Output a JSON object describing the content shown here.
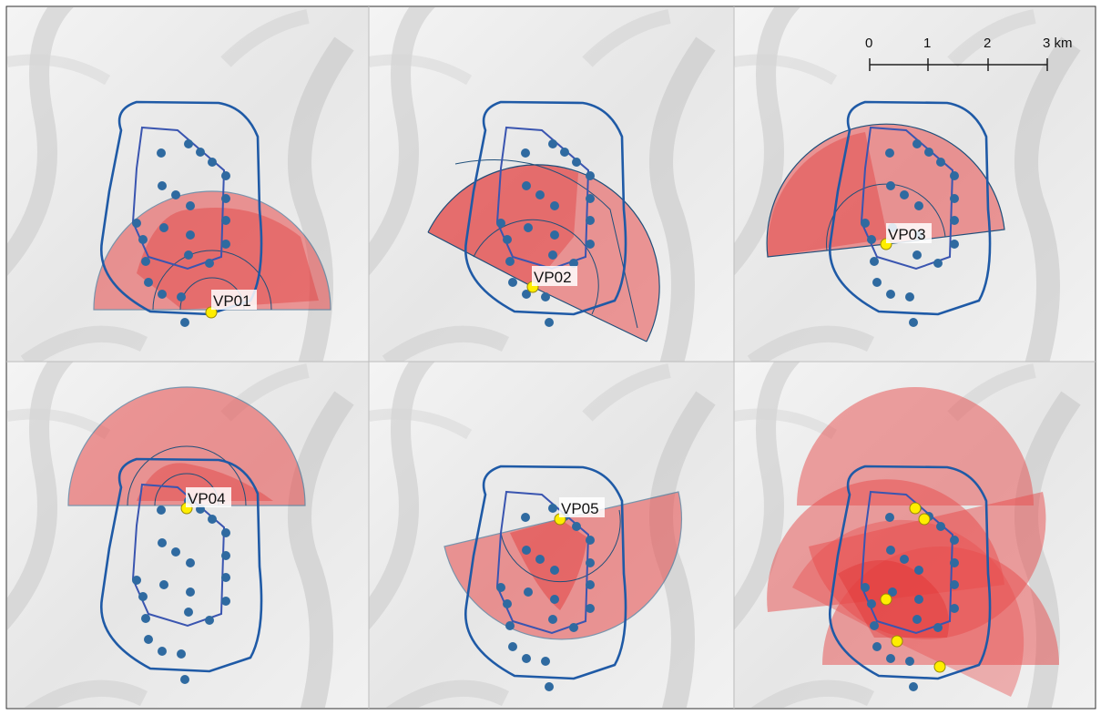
{
  "figure": {
    "panels": [
      {
        "id": "vp01",
        "label": "VP01"
      },
      {
        "id": "vp02",
        "label": "VP02"
      },
      {
        "id": "vp03",
        "label": "VP03"
      },
      {
        "id": "vp04",
        "label": "VP04"
      },
      {
        "id": "vp05",
        "label": "VP05"
      },
      {
        "id": "combined",
        "label": ""
      }
    ],
    "scale_bar": {
      "ticks": [
        "0",
        "1",
        "2",
        "3 km"
      ]
    },
    "colors": {
      "viewshed_red": "#e0282d",
      "boundary_blue": "#1f5aa6",
      "turbine_blue": "#2f6aa0",
      "viewpoint_yellow": "#ffee00",
      "hillshade_base": "#ebebeb"
    },
    "icon_names": [
      "turbine-marker-icon",
      "viewpoint-marker-icon"
    ]
  }
}
